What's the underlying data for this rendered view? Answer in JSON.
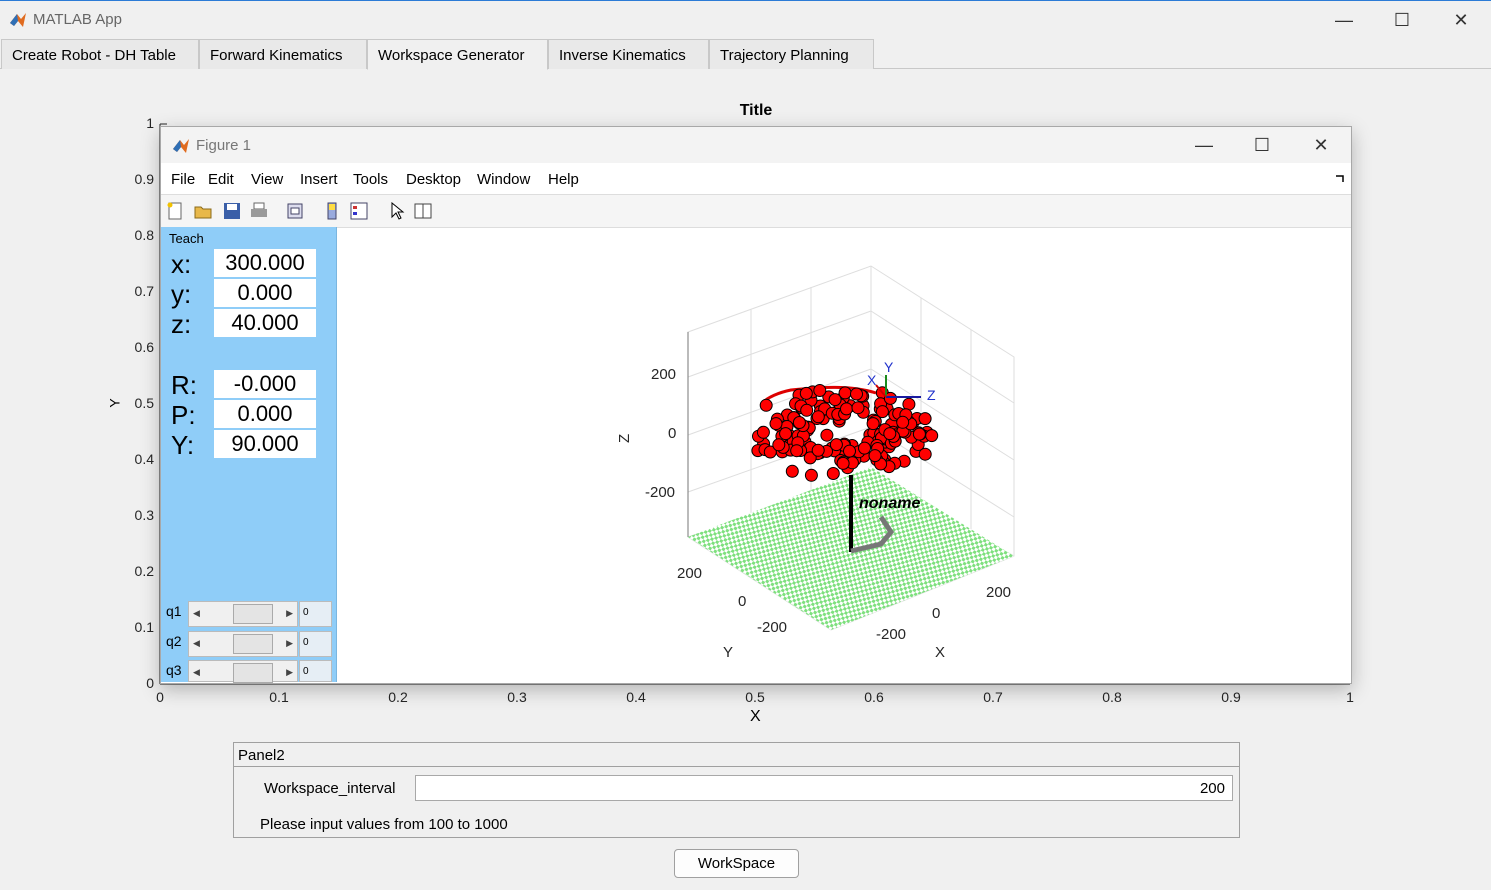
{
  "window": {
    "title": "MATLAB App",
    "minimize": "—",
    "maximize": "☐",
    "close": "✕"
  },
  "tabs": [
    "Create Robot - DH Table",
    "Forward Kinematics",
    "Workspace Generator",
    "Inverse Kinematics",
    "Trajectory Planning"
  ],
  "active_tab": "Workspace Generator",
  "axes": {
    "title": "Title",
    "xlabel": "X",
    "ylabel": "Y",
    "yticks": [
      "0",
      "0.1",
      "0.2",
      "0.3",
      "0.4",
      "0.5",
      "0.6",
      "0.7",
      "0.8",
      "0.9",
      "1"
    ],
    "xticks": [
      "0",
      "0.1",
      "0.2",
      "0.3",
      "0.4",
      "0.5",
      "0.6",
      "0.7",
      "0.8",
      "0.9",
      "1"
    ]
  },
  "figure": {
    "title": "Figure 1",
    "menu": [
      "File",
      "Edit",
      "View",
      "Insert",
      "Tools",
      "Desktop",
      "Window",
      "Help"
    ],
    "toolbar_icons": [
      "new-icon",
      "open-icon",
      "save-icon",
      "print-icon",
      "link-plot-icon",
      "colorbar-icon",
      "legend-icon",
      "pointer-icon",
      "property-editor-icon"
    ],
    "teach": {
      "label": "Teach",
      "x_label": "x:",
      "x": "300.000",
      "y_label": "y:",
      "y": "0.000",
      "z_label": "z:",
      "z": "40.000",
      "r_label": "R:",
      "r": "-0.000",
      "p_label": "P:",
      "p": "0.000",
      "yaw_label": "Y:",
      "yaw": "90.000",
      "joints": [
        {
          "label": "q1",
          "value": "0"
        },
        {
          "label": "q2",
          "value": "0"
        },
        {
          "label": "q3",
          "value": "0"
        }
      ]
    },
    "plot3d": {
      "zlabel": "Z",
      "ylabel": "Y",
      "xlabel": "X",
      "zticks": [
        "200",
        "0",
        "-200"
      ],
      "yticks": [
        "200",
        "0",
        "-200"
      ],
      "xticks": [
        "200",
        "0",
        "-200"
      ],
      "robot_name": "noname",
      "frame_labels": [
        "X",
        "Y",
        "Z"
      ],
      "point_color": "#ff0000",
      "floor_color": "#7ee07e"
    }
  },
  "panel2": {
    "title": "Panel2",
    "field_label": "Workspace_interval",
    "field_value": "200",
    "hint": "Please input values from 100 to 1000"
  },
  "button": {
    "label": "WorkSpace"
  }
}
